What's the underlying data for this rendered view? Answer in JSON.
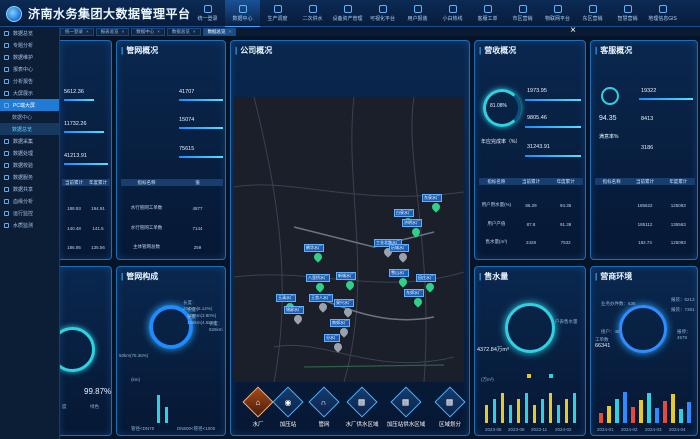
{
  "app": {
    "title": "济南水务集团大数据管理平台"
  },
  "topnav": [
    {
      "label": "统一登录"
    },
    {
      "label": "数据中心"
    },
    {
      "label": "生产调度"
    },
    {
      "label": "二次供水"
    },
    {
      "label": "设备资产管理"
    },
    {
      "label": "可视化平台"
    },
    {
      "label": "用户报装"
    },
    {
      "label": "小白热线"
    },
    {
      "label": "客服工单"
    },
    {
      "label": "市区营销"
    },
    {
      "label": "物联网平台"
    },
    {
      "label": "东区营销"
    },
    {
      "label": "智慧营销"
    },
    {
      "label": "地理信息GIS"
    }
  ],
  "sidebar": [
    {
      "label": "数据总览",
      "state": ""
    },
    {
      "label": "专题分析",
      "state": ""
    },
    {
      "label": "数据维护",
      "state": ""
    },
    {
      "label": "报表中心",
      "state": ""
    },
    {
      "label": "分析报告",
      "state": ""
    },
    {
      "label": "大屏展示",
      "state": ""
    },
    {
      "label": "PC端大屏",
      "state": "active"
    },
    {
      "label": "数据中心",
      "state": "sub"
    },
    {
      "label": "数据总览",
      "state": "sub-active"
    },
    {
      "label": "数据采集",
      "state": ""
    },
    {
      "label": "数据处理",
      "state": ""
    },
    {
      "label": "数据校验",
      "state": ""
    },
    {
      "label": "数据服务",
      "state": ""
    },
    {
      "label": "数据共享",
      "state": ""
    },
    {
      "label": "血缘分析",
      "state": ""
    },
    {
      "label": "运行监控",
      "state": ""
    },
    {
      "label": "水质监测",
      "state": ""
    }
  ],
  "tabs": [
    {
      "label": "统一登录",
      "active": false
    },
    {
      "label": "报表总览",
      "active": false
    },
    {
      "label": "数据中心",
      "active": false
    },
    {
      "label": "数据总览",
      "active": false
    },
    {
      "label": "数据总览",
      "active": true
    }
  ],
  "close_glyph": "×",
  "left_panel": {
    "values": [
      "5612.36",
      "11732.26",
      "41213.91"
    ],
    "head": [
      "指标名称",
      "当前累计",
      "年度累计"
    ],
    "rows": [
      [
        "",
        "188.93",
        "194.91"
      ],
      [
        "",
        "140.48",
        "141.5"
      ],
      [
        "",
        "186.95",
        "135.56"
      ]
    ],
    "pct_a": "99.87%",
    "label_a": "绿色",
    "label_b": "度"
  },
  "pipe_overview": {
    "title": "管网概况",
    "values": [
      "41707",
      "15074",
      "75615"
    ],
    "head": [
      "指标名称",
      "值"
    ],
    "rows": [
      [
        "水行管网工单数",
        "4877"
      ],
      [
        "水行管网工单数",
        "7144"
      ],
      [
        "主体管网总数",
        "259"
      ]
    ]
  },
  "company_overview": {
    "title": "公司概况"
  },
  "map": {
    "labels": [
      "东泉水厂",
      "白泉水厂",
      "济明水厂",
      "鹊华水厂",
      "工业北路水厂",
      "历城水厂",
      "八里桥水厂",
      "新城水厂",
      "玉清水厂",
      "王舍人水厂",
      "锦屏水厂",
      "泉兴水厂",
      "雪山水厂",
      "田庄水厂",
      "东郊水厂",
      "南郊水厂",
      "分水厂"
    ]
  },
  "layers": [
    {
      "label": "水厂",
      "glyph": "⌂",
      "active": true
    },
    {
      "label": "加压站",
      "glyph": "◉",
      "active": false
    },
    {
      "label": "管网",
      "glyph": "∩",
      "active": false
    },
    {
      "label": "水厂供水区域",
      "glyph": "▦",
      "active": false
    },
    {
      "label": "加压站供水区域",
      "glyph": "▦",
      "active": false
    },
    {
      "label": "区域划分",
      "glyph": "▦",
      "active": false
    }
  ],
  "pipe_composition": {
    "title": "管网构成",
    "legend": [
      "长度：204km(6.14%)",
      "长度：126km(3.80%)",
      "长度：156km(4.68%)",
      "长度：826km"
    ],
    "big": "50km(75.36%)",
    "axis": "(km)",
    "footer": [
      "管径<DN75",
      "DN600<管径<1000"
    ]
  },
  "revenue": {
    "title": "营收概况",
    "pct": "81.08%",
    "rate_label": "年应完成率（%）",
    "values": [
      "1973.95",
      "9805.46",
      "31243.91"
    ]
  },
  "customer_service": {
    "title": "客服概况",
    "values": [
      "19322",
      "94.35",
      "8413",
      "3186"
    ],
    "label_b": "满意率%",
    "head": [
      "指标名称",
      "当前累计",
      "年度累计"
    ],
    "rows": [
      [
        "",
        "185622",
        "125093"
      ],
      [
        "",
        "185112",
        "135563"
      ],
      [
        "",
        "182.74",
        "125093"
      ]
    ]
  },
  "left_rev_table": {
    "head": [
      "指标名称",
      "当前累计",
      "年度累计"
    ],
    "rows": [
      [
        "用户用水量(%)",
        "86.29",
        "94.36"
      ],
      [
        "用户产值",
        "87.8",
        "91.39"
      ],
      [
        "售水量(m³)",
        "2428",
        "7532"
      ]
    ]
  },
  "water_sales": {
    "title": "售水量",
    "inner_label": "户表售水量",
    "big": "4372.84万m³",
    "axis": "(万m³)",
    "xaxis": [
      "2023-05",
      "2023-08",
      "2023-11",
      "2024-02"
    ]
  },
  "marketing": {
    "title": "营商环境",
    "label_a": "业务办件数：636",
    "label_b": "接户：46",
    "label_c": "工单数",
    "count": "66341",
    "items": [
      "报装：5213",
      "报装：7381",
      "报停：4579"
    ],
    "xaxis": [
      "2024-01",
      "2024-02",
      "2024-03",
      "2024-04"
    ]
  }
}
